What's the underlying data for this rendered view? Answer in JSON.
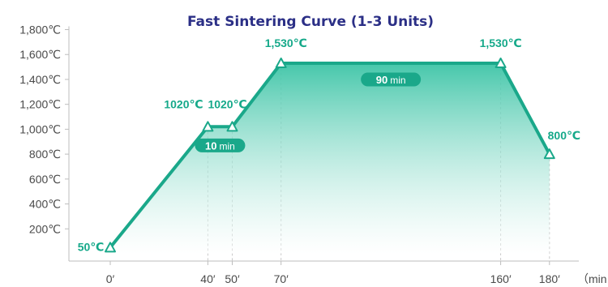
{
  "chart_data": {
    "type": "area",
    "title": "Fast Sintering Curve (1-3 Units)",
    "xlabel": "（min",
    "ylabel": "",
    "xlim": [
      -40,
      195
    ],
    "ylim": [
      0,
      1800
    ],
    "x_ticks": [
      0,
      40,
      50,
      70,
      160,
      180
    ],
    "x_tick_labels": [
      "0′",
      "40′",
      "50′",
      "70′",
      "160′",
      "180′"
    ],
    "y_ticks": [
      200,
      400,
      600,
      800,
      1000,
      1200,
      1400,
      1600,
      1800
    ],
    "y_tick_labels": [
      "200℃",
      "400℃",
      "600℃",
      "800℃",
      "1,000℃",
      "1,200℃",
      "1,400℃",
      "1,600℃",
      "1,800℃"
    ],
    "series": [
      {
        "x": [
          0,
          40,
          50,
          70,
          160,
          180
        ],
        "values": [
          50,
          1020,
          1020,
          1530,
          1530,
          800
        ]
      }
    ],
    "point_labels": [
      "50℃",
      "1020℃",
      "1020℃",
      "1,530℃",
      "1,530℃",
      "800℃"
    ],
    "annotations": [
      {
        "value": "10",
        "unit": "min",
        "x_start": 40,
        "x_end": 50,
        "y": 870
      },
      {
        "value": "90",
        "unit": "min",
        "x_start": 70,
        "x_end": 160,
        "y": 1400
      }
    ],
    "colors": {
      "line": "#1aa88a",
      "fill_top": "#3cc4a6",
      "fill_bottom": "#ffffff",
      "title": "#2b2f86",
      "label": "#16a98a"
    },
    "grid": false,
    "legend": "none"
  }
}
